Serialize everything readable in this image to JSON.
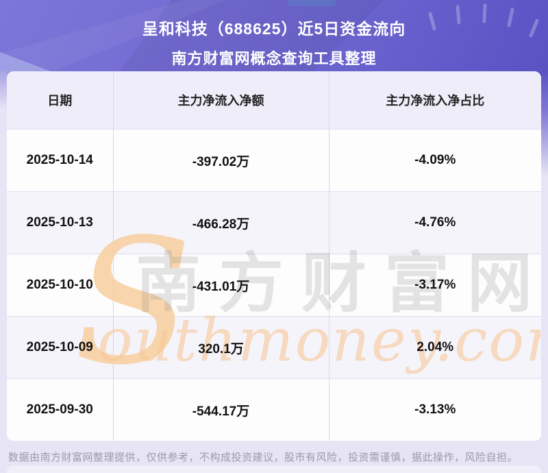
{
  "banner": {
    "title_line1": "呈和科技（688625）近5日资金流向",
    "title_line2": "南方财富网概念查询工具整理"
  },
  "chart_data": {
    "type": "table",
    "title": "呈和科技（688625）近5日资金流向",
    "subtitle": "南方财富网概念查询工具整理",
    "columns": [
      "日期",
      "主力净流入净额",
      "主力净流入净占比"
    ],
    "rows": [
      [
        "2025-10-14",
        "-397.02万",
        "-4.09%"
      ],
      [
        "2025-10-13",
        "-466.28万",
        "-4.76%"
      ],
      [
        "2025-10-10",
        "-431.01万",
        "-3.17%"
      ],
      [
        "2025-10-09",
        "320.1万",
        "2.04%"
      ],
      [
        "2025-09-30",
        "-544.17万",
        "-3.13%"
      ]
    ],
    "net_inflow_values_wan": [
      -397.02,
      -466.28,
      -431.01,
      320.1,
      -544.17
    ],
    "net_inflow_ratio_pct": [
      -4.09,
      -4.76,
      -3.17,
      2.04,
      -3.13
    ]
  },
  "watermark": {
    "swoosh": "S",
    "cjk": "南方财富网",
    "latin": "outhmoney.com"
  },
  "footer": {
    "disclaimer": "数据由南方财富网整理提供，仅供参考，不构成投资建议，股市有风险，投资需谨慎，据此操作，风险自担。"
  },
  "colors": {
    "banner_purple": "#6e66cf",
    "page_background": "#e7e4f5",
    "header_row": "#efedf9",
    "row_alt": "#f5f4fb",
    "divider": "#d9d5ec",
    "watermark_orange": "#f8cf9e",
    "disclaimer_gray": "#9b99ab"
  }
}
